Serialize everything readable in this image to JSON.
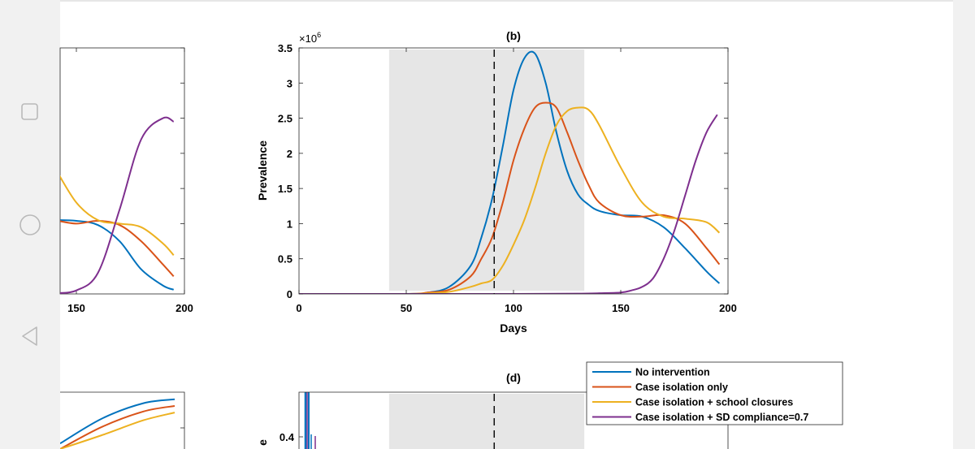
{
  "viewer": {
    "nav_buttons": [
      {
        "name": "square-icon"
      },
      {
        "name": "circle-icon"
      },
      {
        "name": "back-triangle-icon"
      }
    ]
  },
  "panel_b": {
    "chart_data": {
      "type": "line",
      "title": "(b)",
      "xlabel": "Days",
      "ylabel": "Prevalence",
      "y_multiplier_label": "×10",
      "y_multiplier_exp": "6",
      "xlim": [
        0,
        200
      ],
      "ylim": [
        0,
        3.5
      ],
      "xticks": [
        "0",
        "50",
        "100",
        "150",
        "200"
      ],
      "yticks": [
        "0",
        "0.5",
        "1",
        "1.5",
        "2",
        "2.5",
        "3",
        "3.5"
      ],
      "shaded_interval": [
        42,
        133
      ],
      "vline_x": 91,
      "series": [
        {
          "name": "No intervention",
          "color": "#0072BD",
          "x": [
            0,
            50,
            60,
            70,
            80,
            85,
            90,
            95,
            100,
            105,
            110,
            115,
            120,
            125,
            130,
            135,
            140,
            150,
            160,
            170,
            180,
            190,
            196
          ],
          "y": [
            0,
            0,
            0.02,
            0.1,
            0.4,
            0.8,
            1.35,
            2.1,
            2.9,
            3.35,
            3.42,
            3.0,
            2.3,
            1.75,
            1.42,
            1.27,
            1.18,
            1.12,
            1.1,
            0.95,
            0.65,
            0.32,
            0.15
          ]
        },
        {
          "name": "Case isolation only",
          "color": "#D95319",
          "x": [
            0,
            50,
            60,
            70,
            80,
            85,
            90,
            95,
            100,
            105,
            110,
            115,
            120,
            125,
            130,
            135,
            140,
            150,
            160,
            170,
            180,
            190,
            196
          ],
          "y": [
            0,
            0,
            0.02,
            0.06,
            0.25,
            0.5,
            0.8,
            1.3,
            1.9,
            2.35,
            2.65,
            2.72,
            2.65,
            2.3,
            1.9,
            1.55,
            1.3,
            1.12,
            1.1,
            1.12,
            1.0,
            0.65,
            0.42
          ]
        },
        {
          "name": "Case isolation + school closures",
          "color": "#EDB120",
          "x": [
            0,
            50,
            60,
            70,
            80,
            85,
            90,
            95,
            100,
            105,
            110,
            115,
            120,
            125,
            130,
            135,
            140,
            150,
            160,
            170,
            180,
            190,
            196
          ],
          "y": [
            0,
            0,
            0.01,
            0.03,
            0.1,
            0.15,
            0.2,
            0.4,
            0.7,
            1.05,
            1.5,
            2.0,
            2.4,
            2.6,
            2.65,
            2.62,
            2.4,
            1.8,
            1.3,
            1.1,
            1.07,
            1.02,
            0.87
          ]
        },
        {
          "name": "Case isolation + SD compliance=0.7",
          "color": "#7E2F8E",
          "x": [
            0,
            50,
            100,
            130,
            140,
            150,
            155,
            160,
            165,
            170,
            175,
            180,
            185,
            190,
            195
          ],
          "y": [
            0,
            0,
            0,
            0.005,
            0.01,
            0.02,
            0.05,
            0.1,
            0.22,
            0.5,
            0.9,
            1.4,
            1.9,
            2.3,
            2.55
          ]
        }
      ]
    }
  },
  "panel_a_partial": {
    "chart_data": {
      "type": "line",
      "xticks": [
        "150",
        "200"
      ],
      "series": [
        {
          "color": "#0072BD",
          "x": [
            140,
            150,
            160,
            170,
            180,
            190,
            195
          ],
          "y": [
            1.05,
            1.04,
            0.98,
            0.75,
            0.35,
            0.12,
            0.06
          ]
        },
        {
          "color": "#D95319",
          "x": [
            140,
            150,
            160,
            170,
            180,
            190,
            195
          ],
          "y": [
            1.05,
            1.0,
            1.04,
            0.98,
            0.75,
            0.42,
            0.25
          ]
        },
        {
          "color": "#EDB120",
          "x": [
            140,
            150,
            160,
            170,
            180,
            190,
            195
          ],
          "y": [
            1.8,
            1.3,
            1.05,
            1.0,
            0.95,
            0.72,
            0.55
          ]
        },
        {
          "color": "#7E2F8E",
          "x": [
            140,
            150,
            160,
            170,
            180,
            190,
            195
          ],
          "y": [
            0.01,
            0.05,
            0.3,
            1.2,
            2.2,
            2.5,
            2.45
          ]
        }
      ]
    }
  },
  "panel_c_partial": {
    "chart_data": {
      "type": "line",
      "series": [
        {
          "color": "#0072BD",
          "x": [
            140,
            160,
            180,
            195
          ],
          "y": [
            0.1,
            0.55,
            0.83,
            0.9
          ]
        },
        {
          "color": "#D95319",
          "x": [
            140,
            160,
            180,
            195
          ],
          "y": [
            0.0,
            0.4,
            0.68,
            0.78
          ]
        },
        {
          "color": "#EDB120",
          "x": [
            140,
            160,
            180,
            195
          ],
          "y": [
            0.0,
            0.25,
            0.52,
            0.66
          ]
        }
      ]
    }
  },
  "panel_d": {
    "chart_data": {
      "type": "line",
      "title": "(d)",
      "ylabel_fragment": "e",
      "yticks_visible": [
        "0.4"
      ],
      "shaded_interval": [
        42,
        133
      ],
      "vline_x": 91
    }
  },
  "legend": {
    "entries": [
      {
        "label": "No intervention",
        "color": "#0072BD"
      },
      {
        "label": "Case isolation only",
        "color": "#D95319"
      },
      {
        "label": "Case isolation + school closures",
        "color": "#EDB120"
      },
      {
        "label": "Case isolation + SD compliance=0.7",
        "color": "#7E2F8E"
      }
    ]
  }
}
